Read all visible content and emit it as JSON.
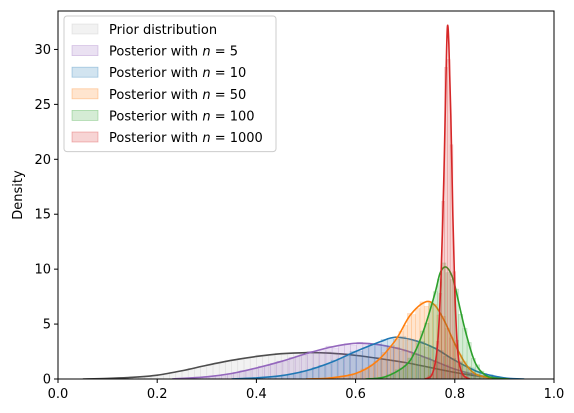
{
  "chart_data": {
    "type": "area",
    "title": "",
    "xlabel": "",
    "ylabel": "Density",
    "xlim": [
      0.0,
      1.0
    ],
    "ylim": [
      0,
      33.5
    ],
    "x_ticks": [
      "0.0",
      "0.2",
      "0.4",
      "0.6",
      "0.8",
      "1.0"
    ],
    "y_ticks": [
      "0",
      "5",
      "10",
      "15",
      "20",
      "25",
      "30"
    ],
    "grid": false,
    "legend_position": "top-left",
    "series": [
      {
        "name": "Prior distribution",
        "fill_color": "#bdbdbd",
        "line_color": "#4d4d4d",
        "x": [
          0.05,
          0.1,
          0.15,
          0.2,
          0.25,
          0.3,
          0.35,
          0.4,
          0.45,
          0.5,
          0.55,
          0.6,
          0.65,
          0.7,
          0.75,
          0.8,
          0.85,
          0.9
        ],
        "y": [
          0.0,
          0.05,
          0.15,
          0.35,
          0.75,
          1.25,
          1.7,
          2.05,
          2.3,
          2.4,
          2.35,
          2.15,
          1.85,
          1.5,
          1.05,
          0.6,
          0.25,
          0.05
        ]
      },
      {
        "name": "Posterior with n=5",
        "label_prefix": "Posterior with ",
        "label_var": "n",
        "label_value": "5",
        "fill_color": "#9467bd",
        "line_color": "#9467bd",
        "x": [
          0.23,
          0.3,
          0.35,
          0.4,
          0.45,
          0.5,
          0.55,
          0.6,
          0.65,
          0.7,
          0.75,
          0.8,
          0.85,
          0.9
        ],
        "y": [
          0.0,
          0.2,
          0.5,
          1.0,
          1.6,
          2.3,
          2.9,
          3.25,
          3.1,
          2.6,
          1.8,
          0.9,
          0.3,
          0.0
        ]
      },
      {
        "name": "Posterior with n=10",
        "label_prefix": "Posterior with ",
        "label_var": "n",
        "label_value": "10",
        "fill_color": "#1f77b4",
        "line_color": "#1f77b4",
        "x": [
          0.35,
          0.4,
          0.45,
          0.5,
          0.55,
          0.6,
          0.65,
          0.68,
          0.72,
          0.76,
          0.8,
          0.85,
          0.9,
          0.94
        ],
        "y": [
          0.0,
          0.1,
          0.3,
          0.75,
          1.5,
          2.5,
          3.4,
          3.8,
          3.5,
          2.8,
          1.7,
          0.6,
          0.1,
          0.0
        ]
      },
      {
        "name": "Posterior with n=50",
        "label_prefix": "Posterior with ",
        "label_var": "n",
        "label_value": "50",
        "fill_color": "#ff7f0e",
        "line_color": "#ff7f0e",
        "x": [
          0.5,
          0.55,
          0.6,
          0.64,
          0.68,
          0.71,
          0.74,
          0.76,
          0.78,
          0.8,
          0.82,
          0.84,
          0.87,
          0.9
        ],
        "y": [
          0.0,
          0.1,
          0.5,
          1.5,
          3.5,
          5.8,
          7.0,
          6.7,
          5.2,
          3.2,
          1.5,
          0.5,
          0.1,
          0.0
        ]
      },
      {
        "name": "Posterior with n=100",
        "label_prefix": "Posterior with ",
        "label_var": "n",
        "label_value": "100",
        "fill_color": "#2ca02c",
        "line_color": "#2ca02c",
        "x": [
          0.62,
          0.66,
          0.7,
          0.72,
          0.74,
          0.76,
          0.77,
          0.78,
          0.79,
          0.8,
          0.82,
          0.84,
          0.86,
          0.88,
          0.91
        ],
        "y": [
          0.0,
          0.2,
          1.2,
          2.5,
          4.8,
          7.8,
          9.6,
          10.2,
          9.8,
          8.5,
          4.6,
          1.6,
          0.4,
          0.1,
          0.0
        ]
      },
      {
        "name": "Posterior with n=1000",
        "label_prefix": "Posterior with ",
        "label_var": "n",
        "label_value": "1000",
        "fill_color": "#d62728",
        "line_color": "#d62728",
        "x": [
          0.74,
          0.755,
          0.765,
          0.772,
          0.778,
          0.782,
          0.785,
          0.788,
          0.792,
          0.796,
          0.8,
          0.806,
          0.815,
          0.83
        ],
        "y": [
          0.0,
          0.5,
          3.0,
          9.0,
          18.5,
          27.0,
          32.0,
          30.5,
          24.0,
          15.0,
          8.0,
          2.5,
          0.5,
          0.0
        ]
      }
    ]
  }
}
